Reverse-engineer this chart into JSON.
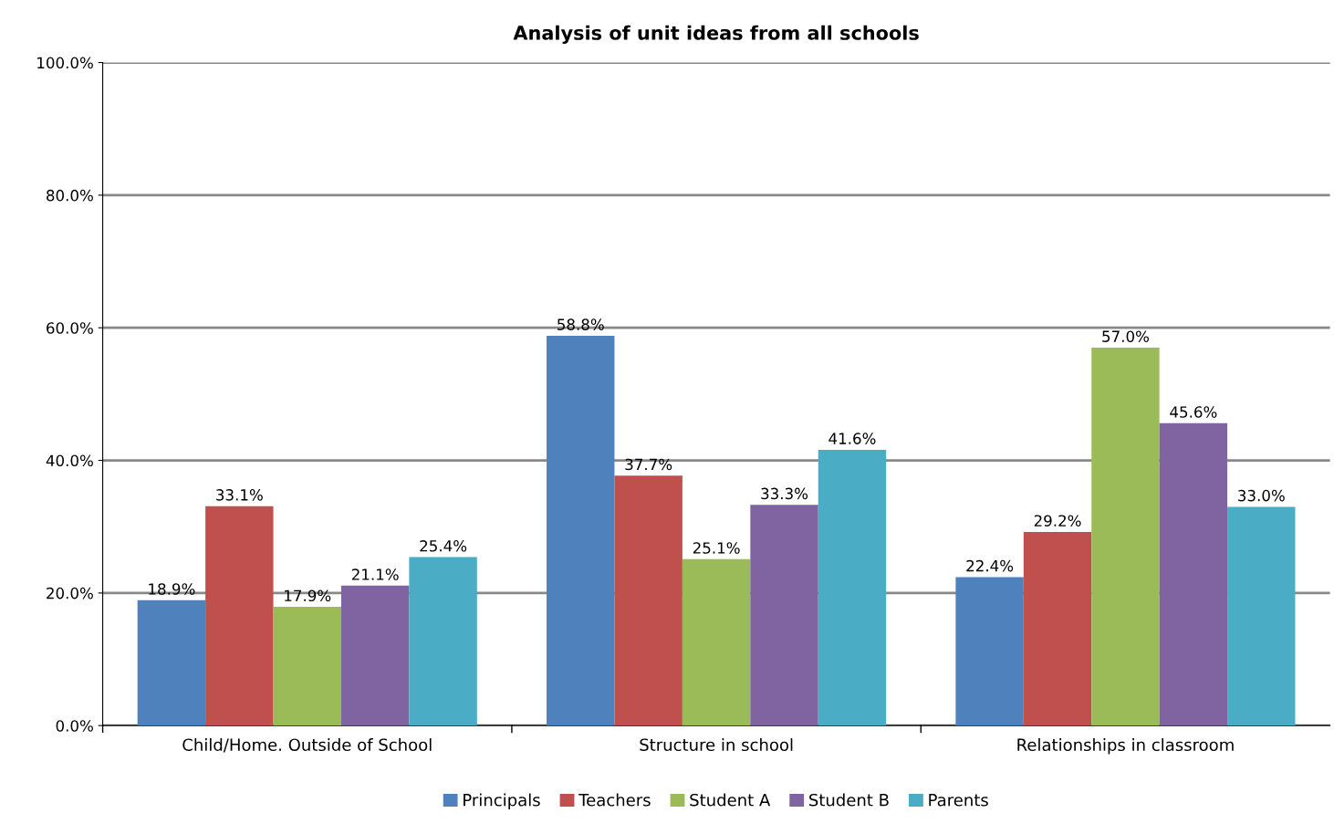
{
  "chart_data": {
    "type": "bar",
    "title": "Analysis of unit ideas from all schools",
    "categories": [
      "Child/Home. Outside of School",
      "Structure in school",
      "Relationships in classroom"
    ],
    "series": [
      {
        "name": "Principals",
        "color": "#4f81bd",
        "values": [
          18.9,
          58.8,
          22.4
        ],
        "value_labels": [
          "18.9%",
          "58.8%",
          "22.4%"
        ]
      },
      {
        "name": "Teachers",
        "color": "#c0504d",
        "values": [
          33.1,
          37.7,
          29.2
        ],
        "value_labels": [
          "33.1%",
          "37.7%",
          "29.2%"
        ]
      },
      {
        "name": "Student A",
        "color": "#9bbb59",
        "values": [
          17.9,
          25.1,
          57.0
        ],
        "value_labels": [
          "17.9%",
          "25.1%",
          "57.0%"
        ]
      },
      {
        "name": "Student B",
        "color": "#8064a2",
        "values": [
          21.1,
          33.3,
          45.6
        ],
        "value_labels": [
          "21.1%",
          "33.3%",
          "45.6%"
        ]
      },
      {
        "name": "Parents",
        "color": "#4bacc6",
        "values": [
          25.4,
          41.6,
          33.0
        ],
        "value_labels": [
          "25.4%",
          "41.6%",
          "33.0%"
        ]
      }
    ],
    "ylim": [
      0,
      100
    ],
    "yticks": [
      {
        "value": 0,
        "label": "0.0%"
      },
      {
        "value": 20,
        "label": "20.0%"
      },
      {
        "value": 40,
        "label": "40.0%"
      },
      {
        "value": 60,
        "label": "60.0%"
      },
      {
        "value": 80,
        "label": "80.0%"
      },
      {
        "value": 100,
        "label": "100.0%"
      }
    ],
    "grid": "y",
    "legend": "bottom"
  }
}
